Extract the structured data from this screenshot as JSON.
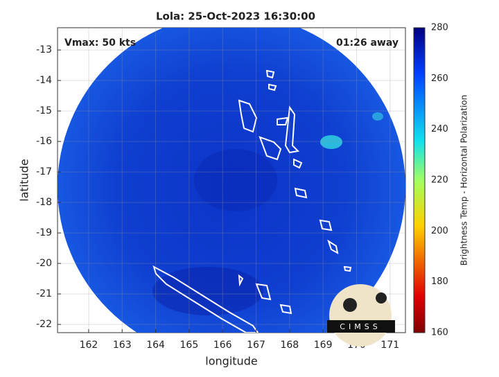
{
  "chart_data": {
    "type": "map",
    "title": "Lola: 25-Oct-2023 16:30:00",
    "annotations": [
      "Vmax: 50 kts",
      "01:26 away"
    ],
    "xlabel": "longitude",
    "ylabel": "latitude",
    "xlim": [
      161.07,
      171.46
    ],
    "ylim": [
      -22.27,
      -12.27
    ],
    "xticks": [
      162,
      163,
      164,
      165,
      166,
      167,
      168,
      169,
      170,
      171
    ],
    "yticks": [
      -22,
      -21,
      -20,
      -19,
      -18,
      -17,
      -16,
      -15,
      -14,
      -13
    ],
    "grid": true,
    "colorbar": {
      "label": "Brightness Temp - Horizontal Polarization",
      "lim": [
        160,
        280
      ],
      "ticks": [
        160,
        180,
        200,
        220,
        240,
        260,
        280
      ]
    },
    "logo_text": "CIMSS"
  }
}
